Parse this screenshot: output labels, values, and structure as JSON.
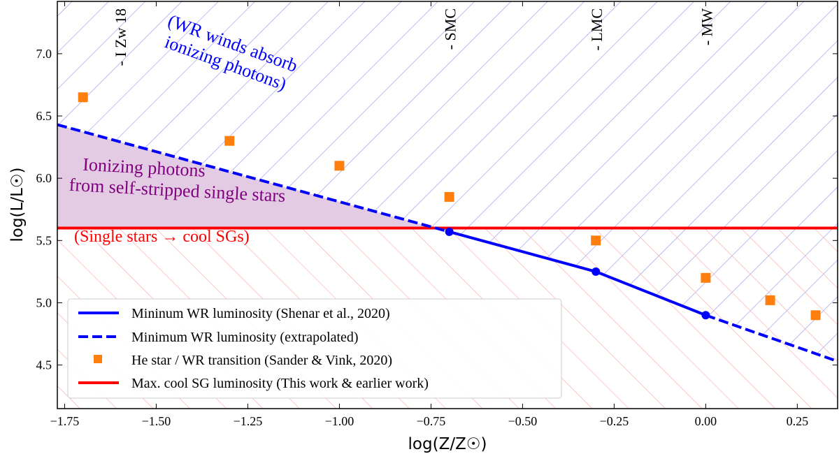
{
  "chart_data": {
    "type": "line",
    "xlabel": "log(Z/Z☉)",
    "ylabel": "log(L/L☉)",
    "xlim": [
      -1.77,
      0.36
    ],
    "ylim": [
      4.15,
      7.42
    ],
    "xticks": [
      -1.75,
      -1.5,
      -1.25,
      -1.0,
      -0.75,
      -0.5,
      -0.25,
      0.0,
      0.25
    ],
    "xtick_labels": [
      "−1.75",
      "−1.50",
      "−1.25",
      "−1.00",
      "−0.75",
      "−0.50",
      "−0.25",
      "0.00",
      "0.25"
    ],
    "yticks": [
      4.5,
      5.0,
      5.5,
      6.0,
      6.5,
      7.0
    ],
    "ytick_labels": [
      "4.5",
      "5.0",
      "5.5",
      "6.0",
      "6.5",
      "7.0"
    ],
    "grid": false,
    "legend_placement": "lower-left",
    "series": [
      {
        "name": "Mininum WR luminosity (Shenar et al., 2020)",
        "style": "solid-markers",
        "color": "#0000ff",
        "x": [
          -0.7,
          -0.3,
          0.0
        ],
        "y": [
          5.57,
          5.25,
          4.9
        ]
      },
      {
        "name": "Minimum WR luminosity (extrapolated)",
        "style": "dashed",
        "color": "#0000ff",
        "segments": [
          {
            "x": [
              -1.77,
              -0.7
            ],
            "y": [
              6.43,
              5.57
            ]
          },
          {
            "x": [
              0.0,
              0.36
            ],
            "y": [
              4.9,
              4.53
            ]
          }
        ]
      },
      {
        "name": "He star / WR transition (Sander & Vink, 2020)",
        "style": "square-markers",
        "color": "#ff7f0e",
        "x": [
          -1.7,
          -1.3,
          -1.0,
          -0.7,
          -0.3,
          0.0,
          0.176,
          0.3
        ],
        "y": [
          6.65,
          6.3,
          6.1,
          5.85,
          5.5,
          5.2,
          5.02,
          4.9
        ]
      },
      {
        "name": "Max. cool SG luminosity (This work & earlier work)",
        "style": "solid",
        "color": "#ff0000",
        "y_const": 5.6
      }
    ],
    "galaxy_markers": [
      {
        "label": "- I Zw 18",
        "x": -1.6
      },
      {
        "label": "- SMC",
        "x": -0.7
      },
      {
        "label": "- LMC",
        "x": -0.3
      },
      {
        "label": "- MW",
        "x": 0.0
      }
    ],
    "annotations": {
      "wr_region": [
        "(WR winds absorb",
        "ionizing photons)"
      ],
      "stripped_region": [
        "Ionizing photons",
        "from self-stripped single stars"
      ],
      "single_stars": "(Single stars → cool SGs)"
    },
    "colors": {
      "blue_hatch": "#9999ee",
      "red_hatch": "#ffaaaa",
      "purple_fill": "#e2cbe3",
      "purple_text": "#800080"
    }
  }
}
